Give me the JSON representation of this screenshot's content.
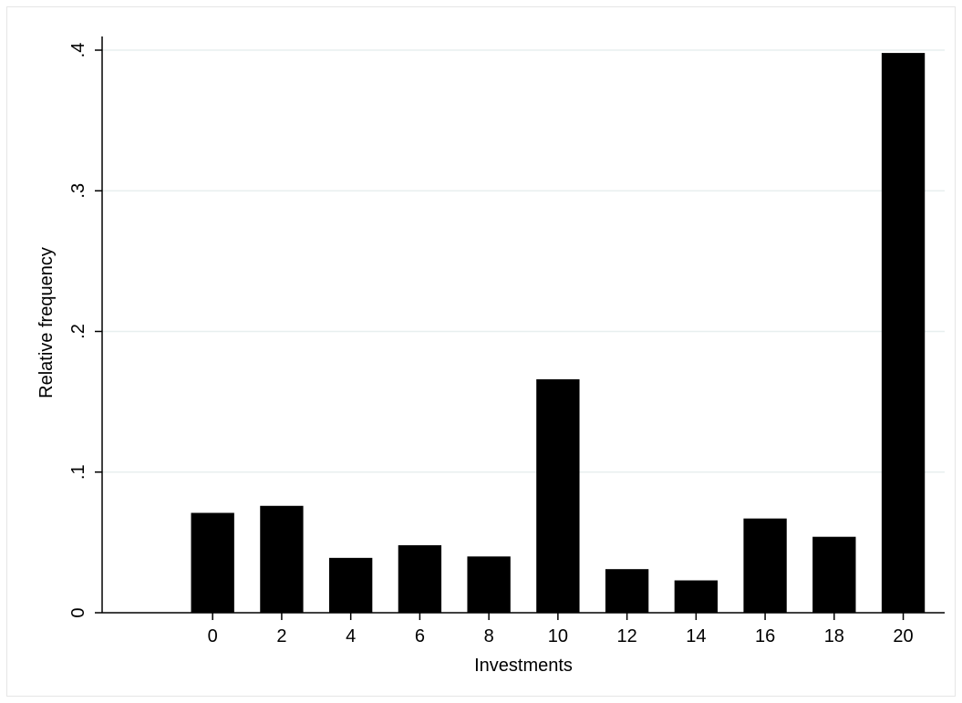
{
  "chart_data": {
    "type": "bar",
    "title": "",
    "xlabel": "Investments",
    "ylabel": "Relative frequency",
    "x": [
      0,
      2,
      4,
      6,
      8,
      10,
      12,
      14,
      16,
      18,
      20
    ],
    "values": [
      0.071,
      0.076,
      0.039,
      0.048,
      0.04,
      0.166,
      0.031,
      0.023,
      0.067,
      0.054,
      0.398
    ],
    "xticks": [
      "0",
      "2",
      "4",
      "6",
      "8",
      "10",
      "12",
      "14",
      "16",
      "18",
      "20"
    ],
    "yticks": [
      {
        "value": 0,
        "label": "0"
      },
      {
        "value": 0.1,
        "label": ".1"
      },
      {
        "value": 0.2,
        "label": ".2"
      },
      {
        "value": 0.3,
        "label": ".3"
      },
      {
        "value": 0.4,
        "label": ".4"
      }
    ],
    "xlim": [
      -3.2,
      21.2
    ],
    "ylim": [
      0,
      0.4
    ],
    "bar_width": 1.25,
    "grid": true,
    "bar_color": "#000000",
    "grid_color": "#e8efef",
    "frame_color": "#e6e6e6"
  }
}
